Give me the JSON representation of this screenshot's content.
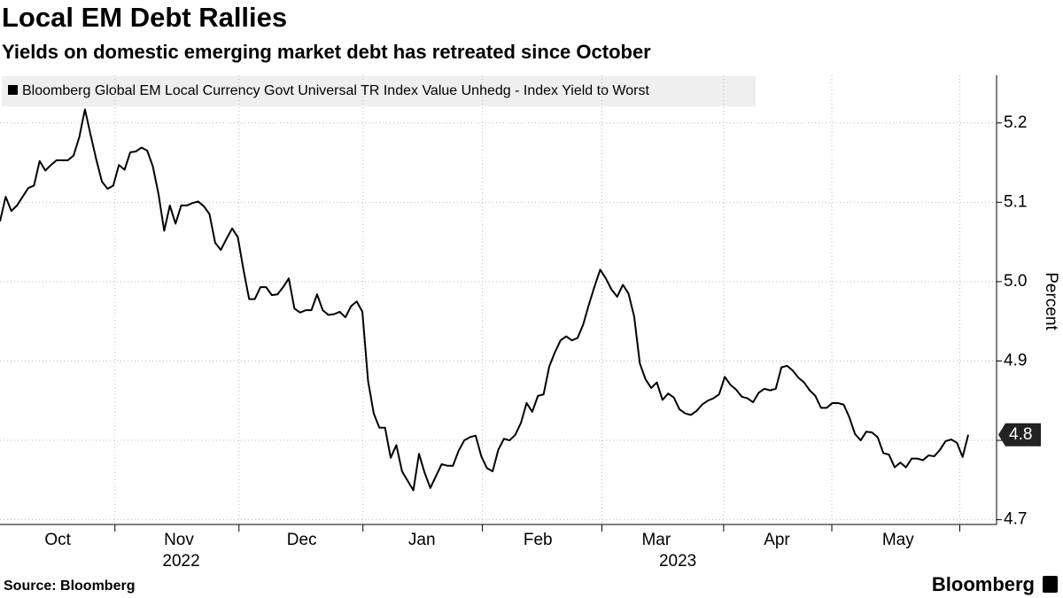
{
  "chart_data": {
    "type": "line",
    "title": "Local EM Debt Rallies",
    "subtitle": "Yields on domestic emerging market debt has retreated since October",
    "y_label": "Percent",
    "source": "Source: Bloomberg",
    "logo": "Bloomberg",
    "grid": true,
    "ylim": [
      4.694,
      5.26
    ],
    "yticks": [
      4.7,
      4.8,
      {
        "value": 4.9,
        "label": "4.9"
      },
      {
        "value": 5,
        "label": "5.0"
      },
      5.1,
      5.2
    ],
    "xlim": [
      0,
      176
    ],
    "xticks": [
      {
        "value": 10.2,
        "label": "Oct"
      },
      {
        "value": 31.6,
        "label": "Nov"
      },
      {
        "value": 53.3,
        "label": "Dec"
      },
      {
        "value": 74.5,
        "label": "Jan"
      },
      {
        "value": 95,
        "label": "Feb"
      },
      {
        "value": 115.9,
        "label": "Mar"
      },
      {
        "value": 137.2,
        "label": "Apr"
      },
      {
        "value": 158.6,
        "label": "May"
      }
    ],
    "x_month_boundaries": [
      20.3,
      42.2,
      64.1,
      85.2,
      106.3,
      127.8,
      146.9,
      169.5
    ],
    "x_year_labels": [
      {
        "value": 32,
        "label": "2022"
      },
      {
        "value": 119.7,
        "label": "2023"
      }
    ],
    "series": [
      {
        "name": "Bloomberg Global EM Local Currency Govt Universal TR Index Value Unhedg - Index Yield to Worst",
        "color": "#000000",
        "last_value_label": "4.8",
        "values": [
          5.076,
          5.107,
          5.089,
          5.096,
          5.107,
          5.118,
          5.121,
          5.152,
          5.14,
          5.147,
          5.153,
          5.153,
          5.153,
          5.159,
          5.182,
          5.217,
          5.185,
          5.154,
          5.126,
          5.117,
          5.121,
          5.147,
          5.141,
          5.163,
          5.164,
          5.169,
          5.165,
          5.145,
          5.11,
          5.064,
          5.096,
          5.073,
          5.096,
          5.096,
          5.099,
          5.101,
          5.095,
          5.085,
          5.049,
          5.04,
          5.054,
          5.067,
          5.056,
          5.015,
          4.978,
          4.978,
          4.993,
          4.993,
          4.983,
          4.984,
          4.993,
          5.004,
          4.966,
          4.961,
          4.964,
          4.964,
          4.984,
          4.964,
          4.958,
          4.959,
          4.962,
          4.955,
          4.969,
          4.975,
          4.962,
          4.875,
          4.834,
          4.816,
          4.816,
          4.778,
          4.794,
          4.761,
          4.749,
          4.737,
          4.783,
          4.759,
          4.74,
          4.755,
          4.77,
          4.768,
          4.768,
          4.787,
          4.8,
          4.804,
          4.806,
          4.78,
          4.765,
          4.761,
          4.788,
          4.802,
          4.8,
          4.807,
          4.822,
          4.847,
          4.836,
          4.856,
          4.858,
          4.893,
          4.911,
          4.926,
          4.931,
          4.926,
          4.929,
          4.946,
          4.971,
          4.994,
          5.015,
          5.004,
          4.99,
          4.981,
          4.996,
          4.985,
          4.956,
          4.897,
          4.877,
          4.866,
          4.873,
          4.851,
          4.859,
          4.854,
          4.839,
          4.834,
          4.832,
          4.837,
          4.845,
          4.85,
          4.853,
          4.858,
          4.88,
          4.87,
          4.864,
          4.855,
          4.853,
          4.848,
          4.86,
          4.865,
          4.863,
          4.865,
          4.892,
          4.894,
          4.888,
          4.879,
          4.873,
          4.863,
          4.856,
          4.841,
          4.841,
          4.847,
          4.847,
          4.845,
          4.829,
          4.808,
          4.8,
          4.811,
          4.81,
          4.804,
          4.784,
          4.782,
          4.766,
          4.772,
          4.766,
          4.777,
          4.777,
          4.775,
          4.781,
          4.78,
          4.788,
          4.799,
          4.801,
          4.797,
          4.779,
          4.807
        ]
      }
    ]
  }
}
